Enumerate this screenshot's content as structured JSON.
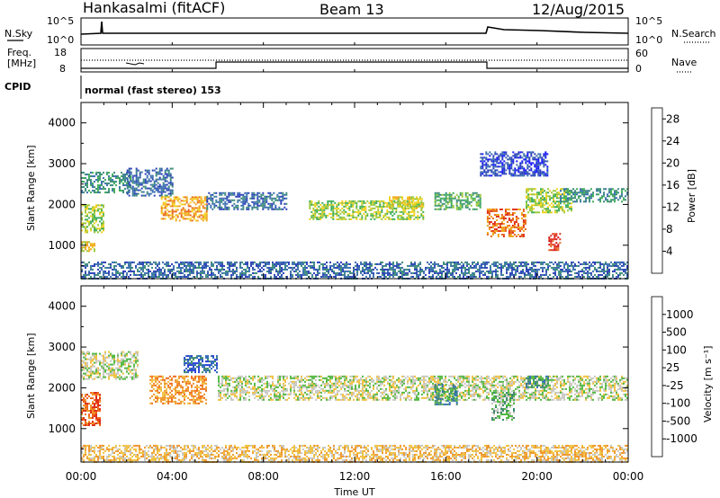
{
  "header": {
    "station": "Hankasalmi (fitACF)",
    "beam": "Beam 13",
    "date": "12/Aug/2015"
  },
  "summary_panel": {
    "nsky_label": "N.Sky",
    "nsearch_label": "N.Search",
    "left_ticks": [
      "10^5",
      "10^0"
    ],
    "right_ticks": [
      "10^5",
      "10^0"
    ],
    "freq_label_line1": "Freq.",
    "freq_label_line2": "[MHz]",
    "freq_ticks": [
      "18",
      "8"
    ],
    "nave_label": "Nave",
    "nave_ticks": [
      "60",
      "0"
    ],
    "cpid_label": "CPID",
    "cpid_text": "normal (fast stereo) 153"
  },
  "x_axis": {
    "label": "Time UT",
    "ticks": [
      "00:00",
      "04:00",
      "08:00",
      "12:00",
      "16:00",
      "20:00",
      "00:00"
    ]
  },
  "chart_data": [
    {
      "type": "heatmap",
      "title": "",
      "xlabel": "Time UT",
      "ylabel": "Slant Range [km]",
      "xlim": [
        0,
        24
      ],
      "ylim": [
        180,
        4500
      ],
      "yticks": [
        "1000",
        "2000",
        "3000",
        "4000"
      ],
      "colorbar": {
        "label": "Power [dB]",
        "ticks": [
          "4",
          "8",
          "12",
          "16",
          "20",
          "24",
          "28"
        ],
        "range": [
          0,
          30
        ],
        "colors": [
          "#1414ff",
          "#2a3fb8",
          "#3b6fae",
          "#3c8c7a",
          "#3fae57",
          "#9cc83b",
          "#f2d21e",
          "#f0a51c",
          "#e8661d",
          "#e0301c",
          "#d40a14"
        ]
      },
      "echo_regions": [
        {
          "t_start": 0.0,
          "t_end": 2.2,
          "r_min": 2300,
          "r_max": 2800,
          "level": 3
        },
        {
          "t_start": 0.0,
          "t_end": 1.0,
          "r_min": 1300,
          "r_max": 2000,
          "level": 5
        },
        {
          "t_start": 0.0,
          "t_end": 0.6,
          "r_min": 850,
          "r_max": 1100,
          "level": 6
        },
        {
          "t_start": 2.0,
          "t_end": 4.0,
          "r_min": 2200,
          "r_max": 2900,
          "level": 2
        },
        {
          "t_start": 3.5,
          "t_end": 5.5,
          "r_min": 1600,
          "r_max": 2200,
          "level": 7
        },
        {
          "t_start": 5.5,
          "t_end": 9.0,
          "r_min": 1900,
          "r_max": 2300,
          "level": 2
        },
        {
          "t_start": 10.0,
          "t_end": 15.0,
          "r_min": 1650,
          "r_max": 2100,
          "level": 5
        },
        {
          "t_start": 13.5,
          "t_end": 15.0,
          "r_min": 1900,
          "r_max": 2200,
          "level": 6
        },
        {
          "t_start": 15.5,
          "t_end": 17.5,
          "r_min": 1900,
          "r_max": 2300,
          "level": 4
        },
        {
          "t_start": 17.8,
          "t_end": 19.5,
          "r_min": 1200,
          "r_max": 1900,
          "level": 8
        },
        {
          "t_start": 19.5,
          "t_end": 21.5,
          "r_min": 1800,
          "r_max": 2400,
          "level": 5
        },
        {
          "t_start": 20.5,
          "t_end": 21.0,
          "r_min": 900,
          "r_max": 1300,
          "level": 9
        },
        {
          "t_start": 21.0,
          "t_end": 24.0,
          "r_min": 2050,
          "r_max": 2400,
          "level": 3
        },
        {
          "t_start": 17.5,
          "t_end": 20.5,
          "r_min": 2700,
          "r_max": 3300,
          "level": 1
        },
        {
          "t_start": 0.0,
          "t_end": 24.0,
          "r_min": 200,
          "r_max": 600,
          "level": 2
        }
      ]
    },
    {
      "type": "heatmap",
      "title": "",
      "xlabel": "Time UT",
      "ylabel": "Slant Range [km]",
      "xlim": [
        0,
        24
      ],
      "ylim": [
        180,
        4500
      ],
      "yticks": [
        "1000",
        "2000",
        "3000",
        "4000"
      ],
      "colorbar": {
        "label": "Velocity [m s⁻¹]",
        "ticks": [
          "1000",
          "500",
          "100",
          "25",
          "-25",
          "-100",
          "-500",
          "-1000"
        ],
        "colors": [
          "#2a3fd8",
          "#2f6ab8",
          "#3f8a6e",
          "#52b840",
          "#c8c8c2",
          "#f0c040",
          "#f0962a",
          "#f06a1e",
          "#e0301c",
          "#e00a14"
        ]
      },
      "echo_regions": [
        {
          "t_start": 0.0,
          "t_end": 2.5,
          "r_min": 2200,
          "r_max": 2900,
          "level": 4
        },
        {
          "t_start": 0.0,
          "t_end": 0.8,
          "r_min": 1100,
          "r_max": 1900,
          "level": 7
        },
        {
          "t_start": 3.0,
          "t_end": 5.5,
          "r_min": 1600,
          "r_max": 2300,
          "level": 6
        },
        {
          "t_start": 4.5,
          "t_end": 6.0,
          "r_min": 2400,
          "r_max": 2800,
          "level": 1
        },
        {
          "t_start": 6.0,
          "t_end": 24.0,
          "r_min": 1700,
          "r_max": 2300,
          "level": 4
        },
        {
          "t_start": 15.5,
          "t_end": 16.5,
          "r_min": 1600,
          "r_max": 2100,
          "level": 2
        },
        {
          "t_start": 18.0,
          "t_end": 19.0,
          "r_min": 1200,
          "r_max": 1900,
          "level": 3
        },
        {
          "t_start": 19.5,
          "t_end": 20.5,
          "r_min": 2000,
          "r_max": 2300,
          "level": 2
        },
        {
          "t_start": 0.0,
          "t_end": 24.0,
          "r_min": 200,
          "r_max": 600,
          "level": 5
        }
      ]
    }
  ]
}
